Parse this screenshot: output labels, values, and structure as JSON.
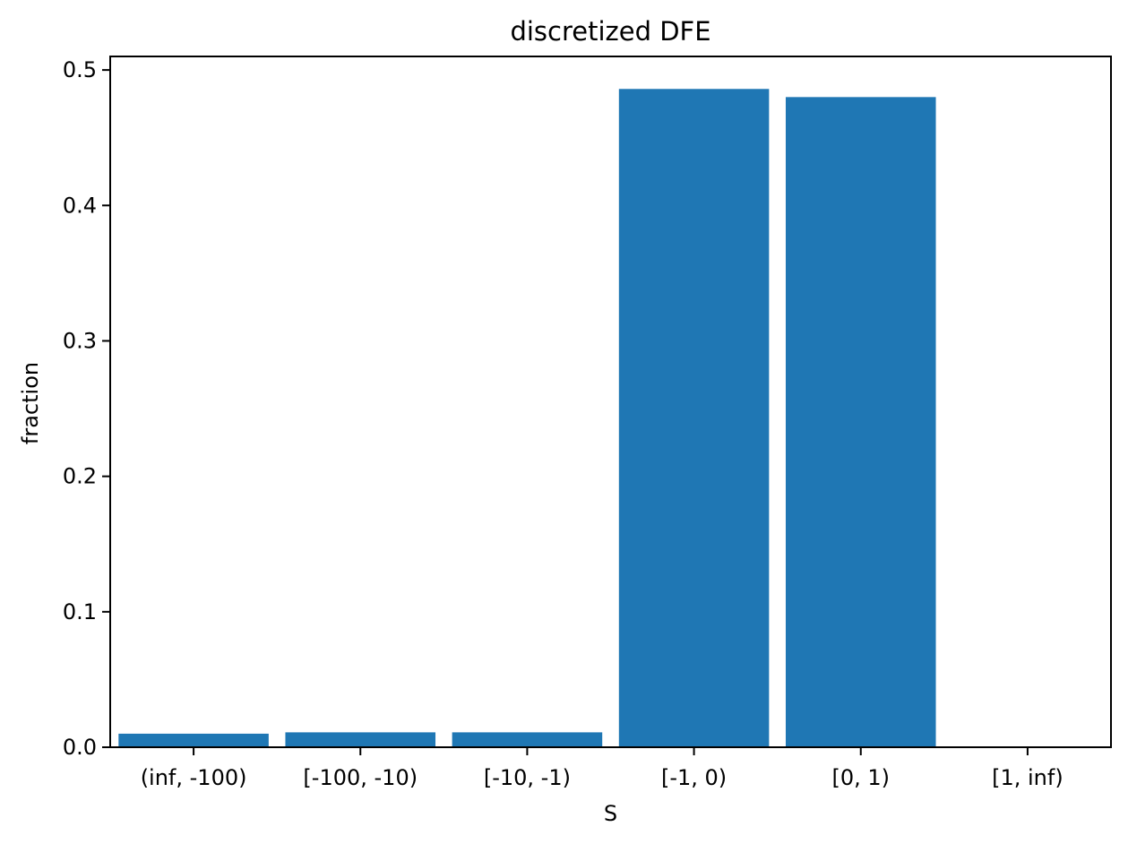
{
  "chart_data": {
    "type": "bar",
    "title": "discretized DFE",
    "xlabel": "S",
    "ylabel": "fraction",
    "categories": [
      "(inf, -100)",
      "[-100, -10)",
      "[-10, -1)",
      "[-1, 0)",
      "[0, 1)",
      "[1, inf)"
    ],
    "values": [
      0.01,
      0.011,
      0.011,
      0.486,
      0.48,
      0.0
    ],
    "ylim": [
      0,
      0.51
    ],
    "yticks": [
      "0.0",
      "0.1",
      "0.2",
      "0.3",
      "0.4",
      "0.5"
    ],
    "grid": false,
    "legend": "none",
    "bar_color": "#1f77b4"
  }
}
